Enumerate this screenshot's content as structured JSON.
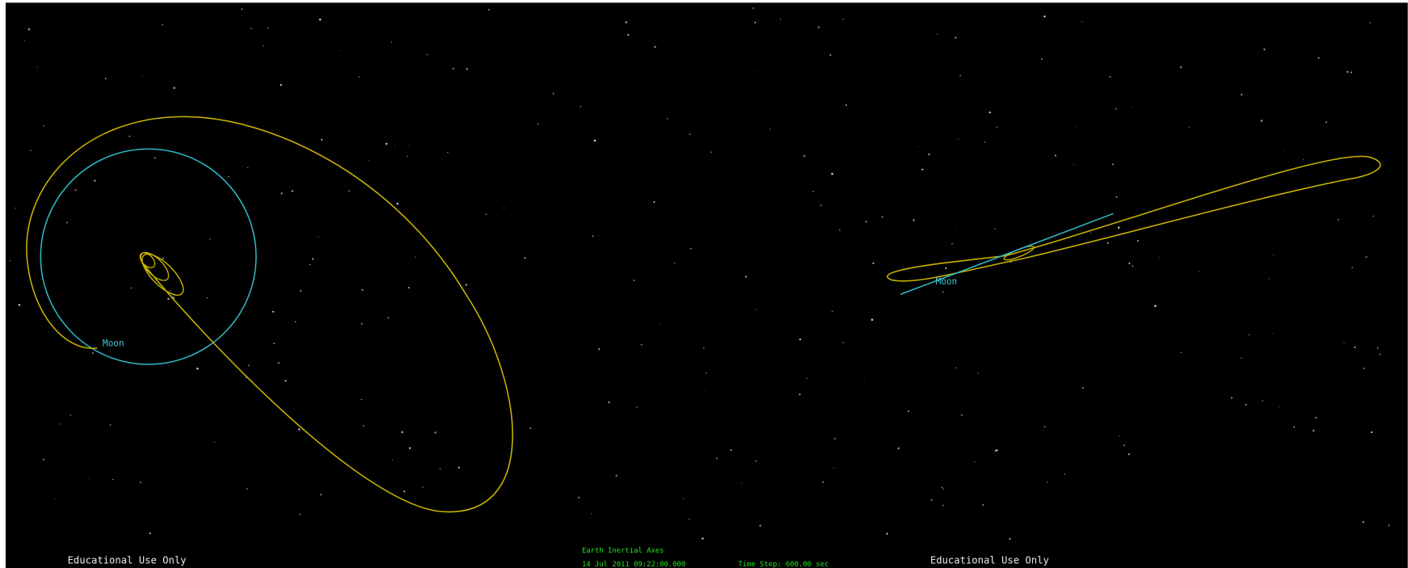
{
  "views": [
    {
      "moon_label": "Moon",
      "watermark": "Educational Use Only"
    },
    {
      "moon_label": "Moon",
      "watermark": "Educational Use Only"
    }
  ],
  "status": {
    "frame": "Earth Inertial Axes",
    "epoch": "14 Jul 2011 09:22:00.000",
    "time_step": "Time Step: 600.00 sec"
  }
}
